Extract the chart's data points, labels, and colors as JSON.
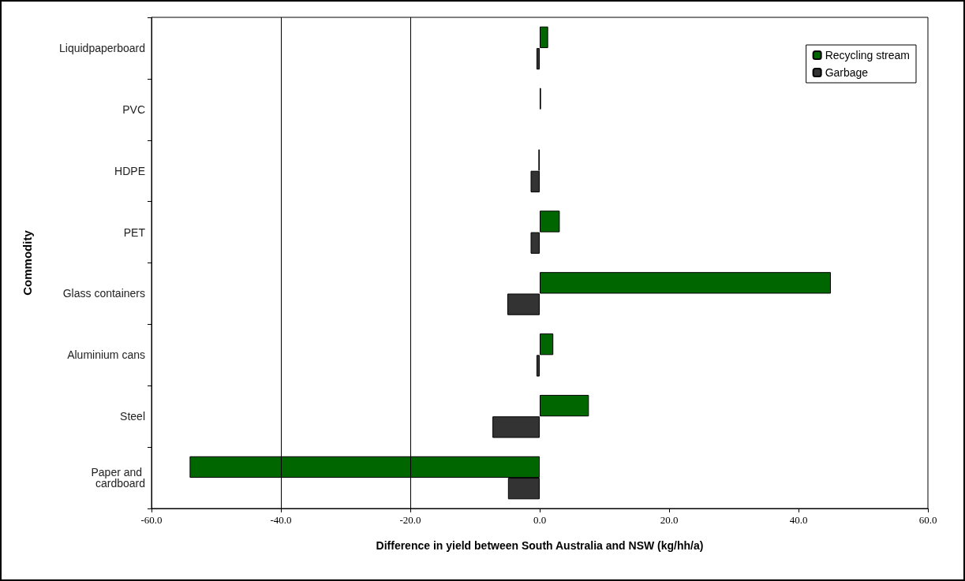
{
  "chart_data": {
    "type": "bar",
    "orientation": "horizontal",
    "xlabel": "Difference in yield between South Australia and NSW (kg/hh/a)",
    "ylabel": "Commodity",
    "categories": [
      "Liquidpaperboard",
      "PVC",
      "HDPE",
      "PET",
      "Glass containers",
      "Aluminium cans",
      "Steel",
      "Paper and cardboard"
    ],
    "series": [
      {
        "name": "Recycling stream",
        "color": "#006600",
        "values": [
          1.3,
          0.2,
          -0.2,
          3.1,
          45.0,
          2.1,
          7.6,
          -54.1
        ]
      },
      {
        "name": "Garbage",
        "color": "#333333",
        "values": [
          -0.5,
          null,
          -1.4,
          -1.4,
          -5.0,
          -0.5,
          -7.3,
          -4.9
        ]
      }
    ],
    "xlim": [
      -60,
      60
    ],
    "xticks": [
      {
        "value": -60,
        "label": "-60.0"
      },
      {
        "value": -40,
        "label": "-40.0"
      },
      {
        "value": -20,
        "label": "-20.0"
      },
      {
        "value": 0,
        "label": "0.0"
      },
      {
        "value": 20,
        "label": "20.0"
      },
      {
        "value": 40,
        "label": "40.0"
      },
      {
        "value": 60,
        "label": "60.0"
      }
    ],
    "ref_lines": [
      {
        "axis": "x",
        "value": -40,
        "color": "#000000"
      },
      {
        "axis": "x",
        "value": -20,
        "color": "#000000"
      }
    ],
    "legend": "top right",
    "grid": false
  }
}
